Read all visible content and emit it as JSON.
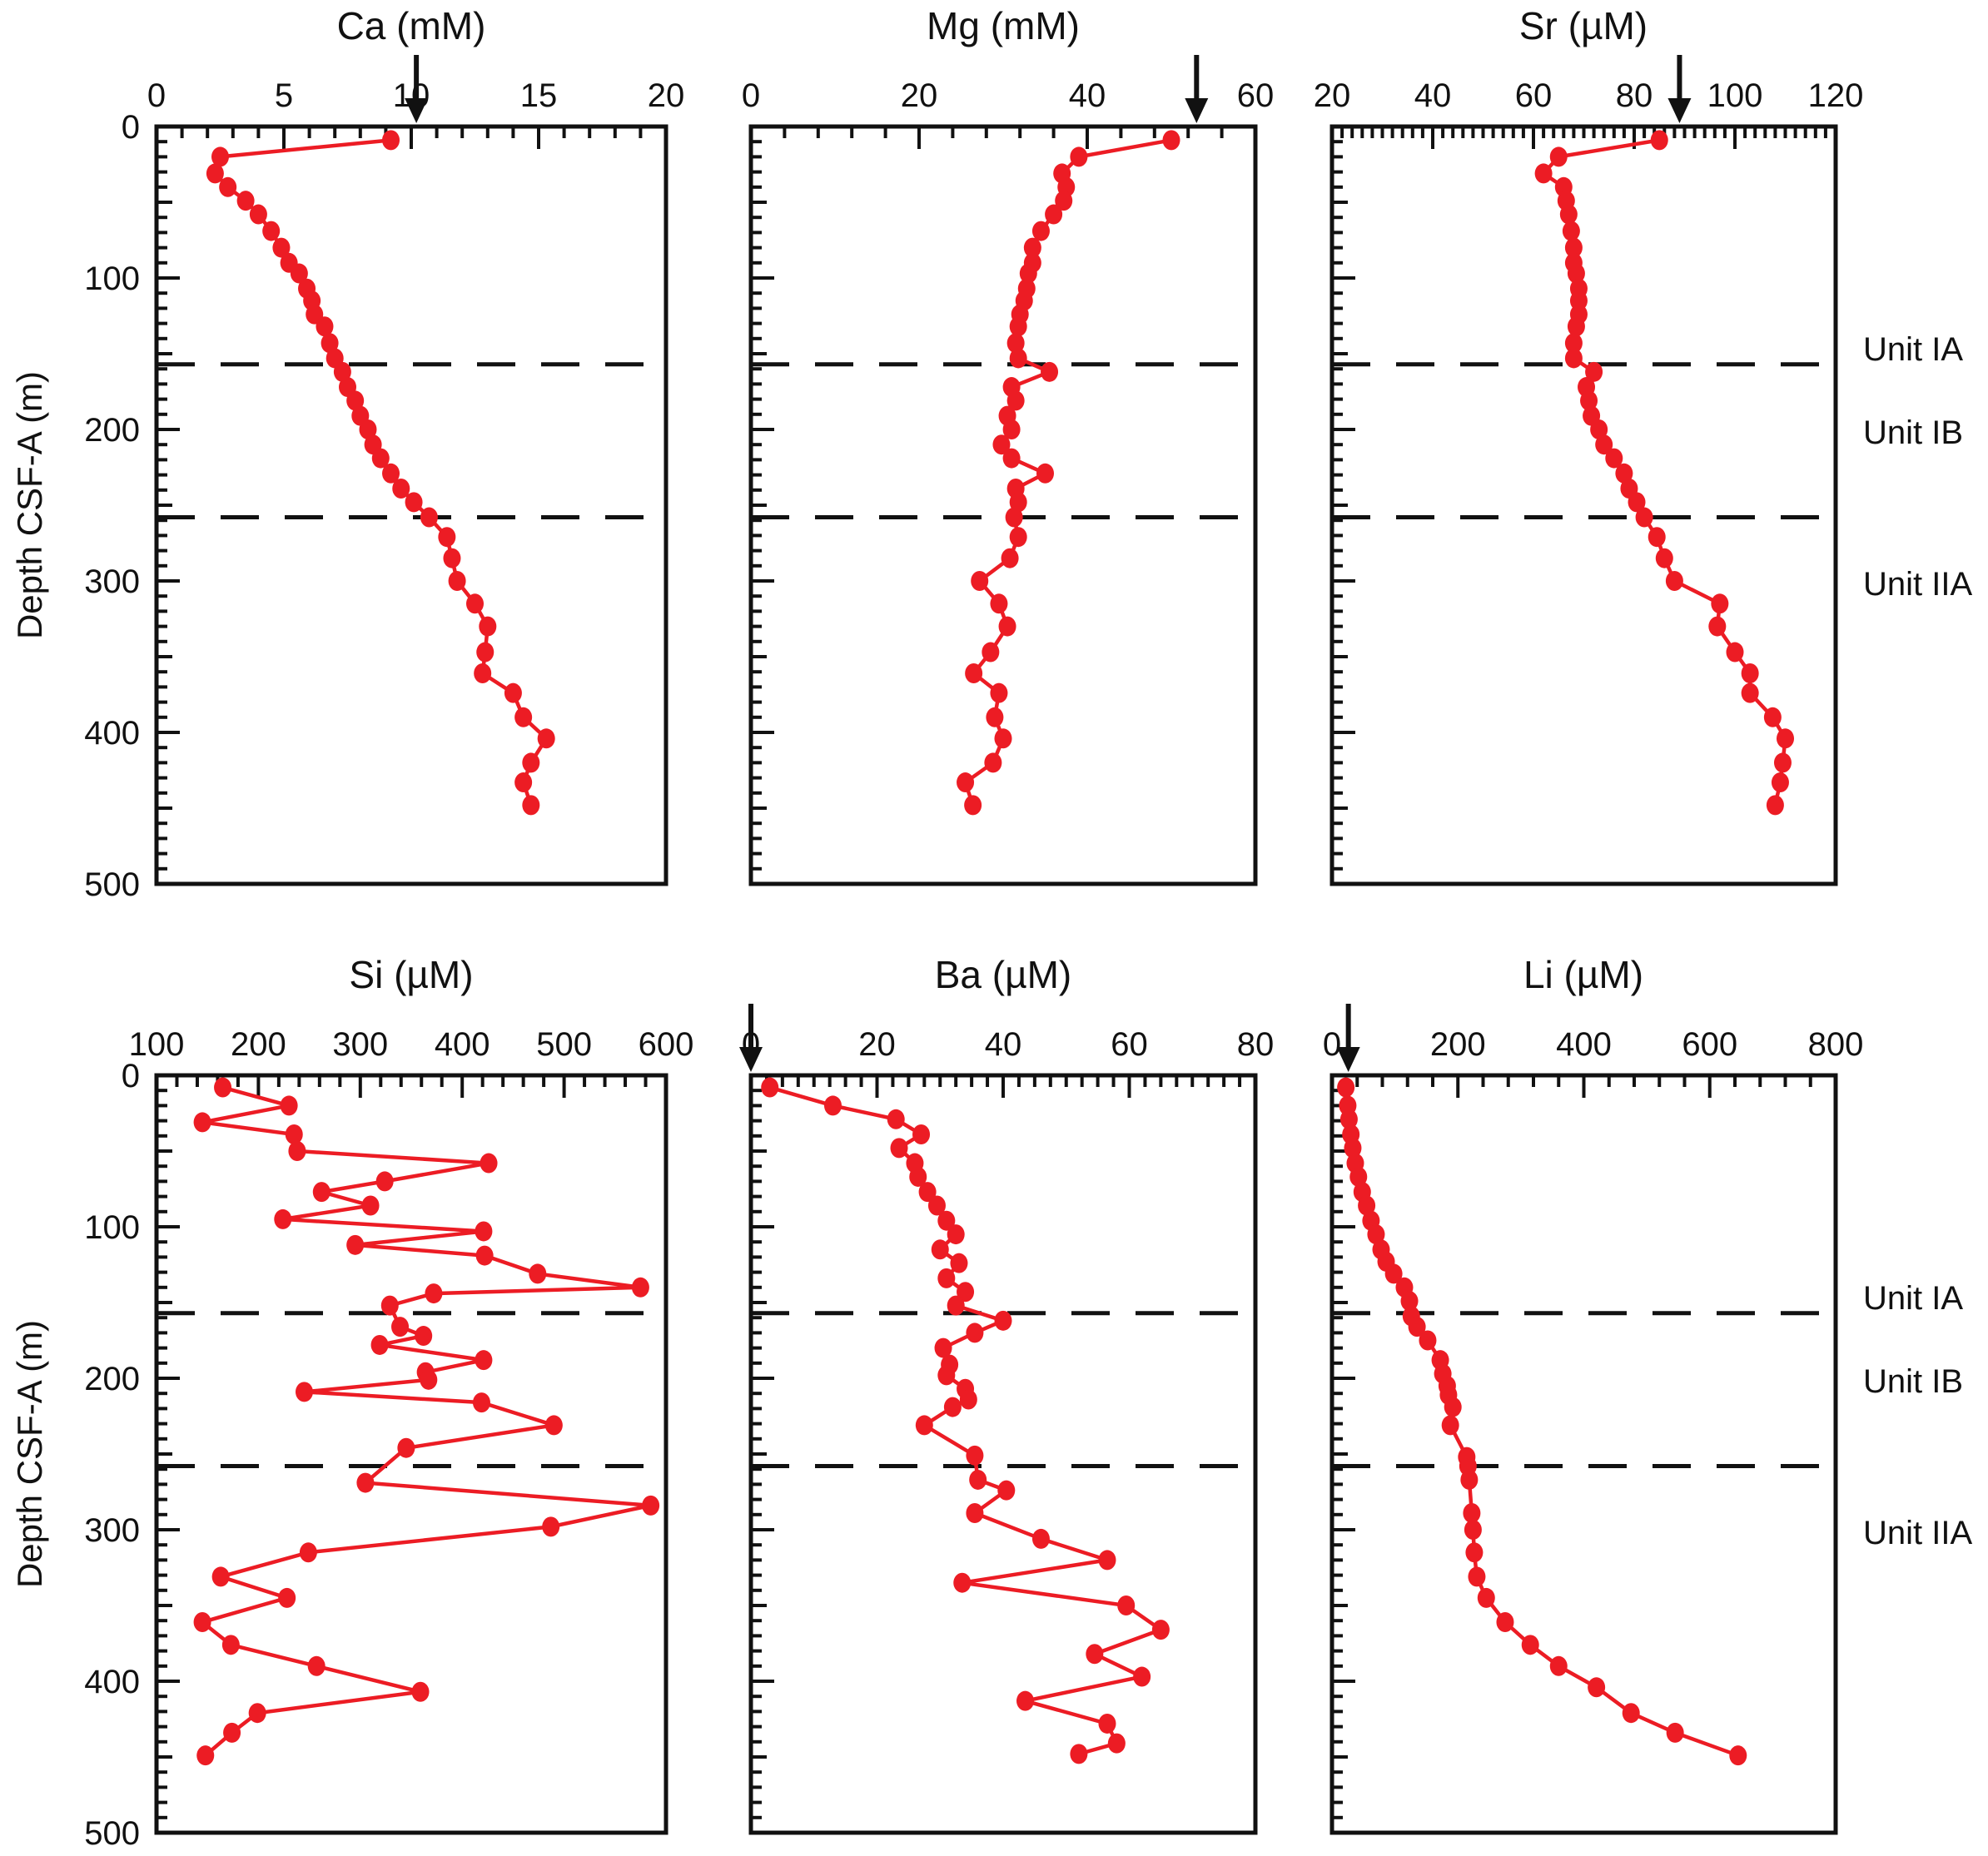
{
  "figure": {
    "ylabel": "Depth CSF-A (m)",
    "unit_labels": [
      "Unit IA",
      "Unit IB",
      "Unit IIA"
    ],
    "unit_boundaries_m": [
      157,
      258
    ],
    "colors": {
      "data": "#EC1C24",
      "axis": "#111111"
    }
  },
  "chart_data": [
    {
      "id": "ca",
      "type": "line",
      "title": "Ca (mM)",
      "xlim": [
        0,
        20
      ],
      "xticks": [
        0,
        5,
        10,
        15,
        20
      ],
      "x_minor_step": 1,
      "ylim": [
        0,
        500
      ],
      "seawater_arrow_x": 10.2,
      "depths_m": [
        9,
        20,
        31,
        40,
        49,
        58,
        69,
        80,
        90,
        97,
        107,
        115,
        124,
        132,
        143,
        153,
        162,
        172,
        181,
        191,
        200,
        210,
        219,
        229,
        239,
        248,
        258,
        271,
        285,
        300,
        315,
        330,
        347,
        361,
        374,
        390,
        404,
        420,
        433,
        448
      ],
      "values": [
        9.2,
        2.5,
        2.3,
        2.8,
        3.5,
        4.0,
        4.5,
        4.9,
        5.2,
        5.6,
        5.9,
        6.1,
        6.2,
        6.6,
        6.8,
        7.0,
        7.3,
        7.5,
        7.8,
        8.0,
        8.3,
        8.5,
        8.8,
        9.2,
        9.6,
        10.1,
        10.7,
        11.4,
        11.6,
        11.8,
        12.5,
        13.0,
        12.9,
        12.8,
        14.0,
        14.4,
        15.3,
        14.7,
        14.4,
        14.7
      ]
    },
    {
      "id": "mg",
      "type": "line",
      "title": "Mg (mM)",
      "xlim": [
        0,
        60
      ],
      "xticks": [
        0,
        20,
        40,
        60
      ],
      "x_minor_step": 4,
      "ylim": [
        0,
        500
      ],
      "seawater_arrow_x": 53,
      "depths_m": [
        9,
        20,
        31,
        40,
        49,
        58,
        69,
        80,
        90,
        97,
        107,
        115,
        124,
        132,
        143,
        153,
        162,
        172,
        181,
        191,
        200,
        210,
        219,
        229,
        239,
        248,
        258,
        271,
        285,
        300,
        315,
        330,
        347,
        361,
        374,
        390,
        404,
        420,
        433,
        448
      ],
      "values": [
        50,
        39,
        37,
        37.5,
        37.2,
        36,
        34.5,
        33.5,
        33.5,
        33,
        32.8,
        32.5,
        32,
        31.8,
        31.5,
        31.8,
        35.5,
        31,
        31.5,
        30.5,
        31,
        29.8,
        31,
        35,
        31.5,
        31.8,
        31.3,
        31.8,
        30.8,
        27.2,
        29.5,
        30.5,
        28.5,
        26.5,
        29.5,
        29,
        30,
        28.8,
        25.5,
        26.4
      ]
    },
    {
      "id": "sr",
      "type": "line",
      "title": "Sr (µM)",
      "xlim": [
        20,
        120
      ],
      "xticks": [
        20,
        40,
        60,
        80,
        100,
        120
      ],
      "x_minor_step": 2,
      "ylim": [
        0,
        500
      ],
      "seawater_arrow_x": 89,
      "depths_m": [
        9,
        20,
        31,
        40,
        49,
        58,
        69,
        80,
        90,
        97,
        107,
        115,
        124,
        132,
        143,
        153,
        162,
        172,
        181,
        191,
        200,
        210,
        219,
        229,
        239,
        248,
        258,
        271,
        285,
        300,
        315,
        330,
        347,
        361,
        374,
        390,
        404,
        420,
        433,
        448
      ],
      "values": [
        85,
        65,
        62,
        66,
        66.5,
        67,
        67.5,
        68,
        68,
        68.5,
        69,
        69,
        69,
        68.5,
        68,
        68,
        72,
        70.5,
        71,
        71.5,
        73,
        74,
        76,
        78,
        79,
        80.5,
        82,
        84.5,
        86,
        88,
        97,
        96.5,
        100,
        103,
        103,
        107.5,
        110,
        109.5,
        109,
        108
      ]
    },
    {
      "id": "si",
      "type": "line",
      "title": "Si (µM)",
      "xlim": [
        100,
        600
      ],
      "xticks": [
        100,
        200,
        300,
        400,
        500,
        600
      ],
      "x_minor_step": 20,
      "ylim": [
        0,
        500
      ],
      "seawater_arrow_x": null,
      "depths_m": [
        8,
        20,
        31,
        39,
        50,
        58,
        70,
        77,
        86,
        95,
        103,
        112,
        119,
        131,
        140,
        144,
        152,
        166,
        172,
        178,
        188,
        196,
        201,
        209,
        216,
        231,
        246,
        269,
        284,
        298,
        315,
        331,
        345,
        361,
        376,
        390,
        407,
        421,
        434,
        449
      ],
      "values": [
        165,
        230,
        145,
        235,
        238,
        426,
        324,
        262,
        310,
        224,
        421,
        295,
        422,
        474,
        575,
        372,
        329,
        339,
        362,
        319,
        421,
        364,
        367,
        245,
        419,
        490,
        345,
        305,
        585,
        487,
        249,
        163,
        228,
        145,
        173,
        257,
        359,
        199,
        174,
        148
      ]
    },
    {
      "id": "ba",
      "type": "line",
      "title": "Ba (µM)",
      "xlim": [
        0,
        80
      ],
      "xticks": [
        0,
        20,
        40,
        60,
        80
      ],
      "x_minor_step": 2.5,
      "ylim": [
        0,
        500
      ],
      "seawater_arrow_x": 0,
      "depths_m": [
        8,
        20,
        29,
        39,
        48,
        58,
        67,
        77,
        86,
        96,
        105,
        115,
        124,
        134,
        143,
        152,
        162,
        170,
        180,
        191,
        198,
        207,
        214,
        219,
        231,
        251,
        267,
        274,
        289,
        306,
        320,
        335,
        350,
        366,
        382,
        397,
        413,
        428,
        441,
        448
      ],
      "values": [
        3,
        13,
        23,
        27,
        23.5,
        26,
        26.5,
        28,
        29.5,
        31,
        32.5,
        30,
        33,
        31,
        34,
        32.5,
        40,
        35.5,
        30.5,
        31.5,
        31,
        34,
        34.5,
        32,
        27.5,
        35.5,
        36,
        40.5,
        35.5,
        46,
        56.5,
        33.5,
        59.5,
        65,
        54.5,
        62,
        43.5,
        56.5,
        58,
        52
      ]
    },
    {
      "id": "li",
      "type": "line",
      "title": "Li (µM)",
      "xlim": [
        0,
        800
      ],
      "xticks": [
        0,
        200,
        400,
        600,
        800
      ],
      "x_minor_step": 40,
      "ylim": [
        0,
        500
      ],
      "seawater_arrow_x": 26,
      "depths_m": [
        8,
        20,
        29,
        39,
        48,
        58,
        67,
        77,
        86,
        96,
        105,
        115,
        123,
        131,
        140,
        149,
        159,
        166,
        175,
        188,
        197,
        205,
        211,
        219,
        231,
        252,
        258,
        267,
        289,
        300,
        315,
        331,
        345,
        361,
        376,
        390,
        404,
        421,
        434,
        449
      ],
      "values": [
        22,
        25,
        27,
        30,
        33,
        37,
        42,
        48,
        55,
        62,
        70,
        78,
        86,
        98,
        115,
        123,
        126,
        135,
        152,
        172,
        176,
        183,
        185,
        192,
        188,
        214,
        216,
        218,
        222,
        224,
        226,
        230,
        245,
        275,
        315,
        360,
        420,
        475,
        545,
        645
      ]
    }
  ]
}
